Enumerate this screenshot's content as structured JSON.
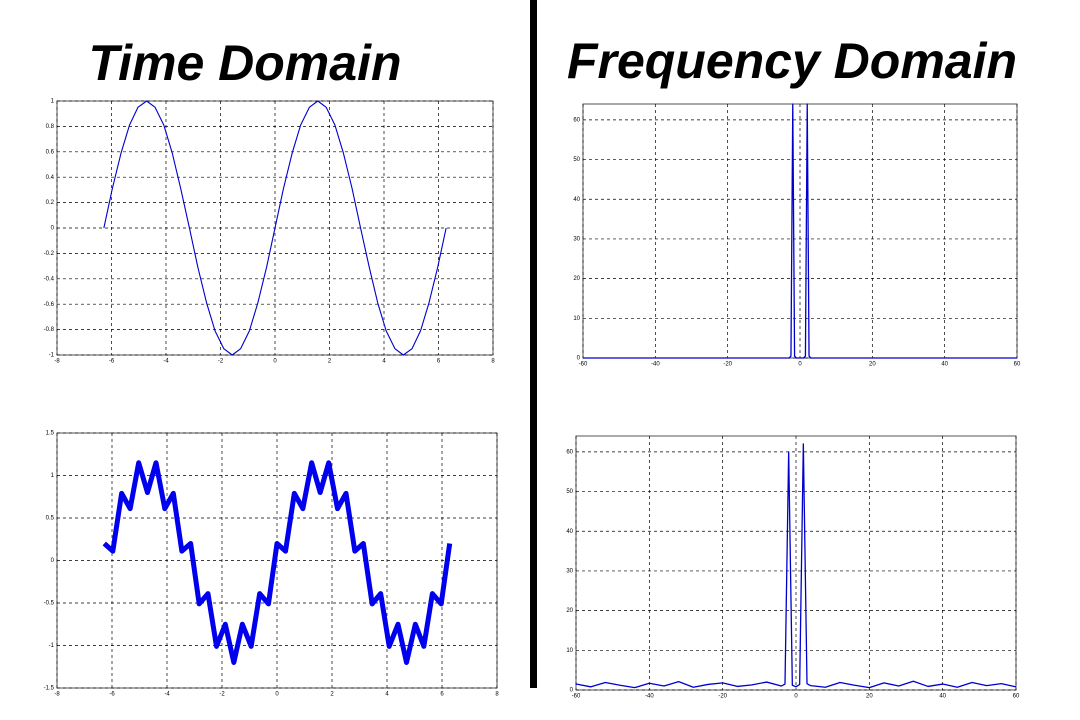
{
  "column_titles": [
    "Time Domain",
    "Frequency Domain"
  ],
  "chart_data": [
    {
      "type": "line",
      "color": "#0000cc",
      "grid": true,
      "xlim": [
        -8,
        8
      ],
      "xticks": [
        -8,
        -6,
        -4,
        -2,
        0,
        2,
        4,
        6,
        8
      ],
      "ylim": [
        -1,
        1
      ],
      "yticks": [
        -1,
        -0.8,
        -0.6,
        -0.4,
        -0.2,
        0,
        0.2,
        0.4,
        0.6,
        0.8,
        1
      ],
      "x": [
        -6.28,
        -5.97,
        -5.65,
        -5.34,
        -5.03,
        -4.71,
        -4.4,
        -4.08,
        -3.77,
        -3.46,
        -3.14,
        -2.83,
        -2.51,
        -2.2,
        -1.88,
        -1.57,
        -1.26,
        -0.94,
        -0.63,
        -0.31,
        0,
        0.31,
        0.63,
        0.94,
        1.26,
        1.57,
        1.88,
        2.2,
        2.51,
        2.83,
        3.14,
        3.46,
        3.77,
        4.08,
        4.4,
        4.71,
        5.03,
        5.34,
        5.65,
        5.97,
        6.28
      ],
      "values": [
        0,
        0.31,
        0.59,
        0.81,
        0.95,
        1,
        0.95,
        0.81,
        0.59,
        0.31,
        0,
        -0.31,
        -0.59,
        -0.81,
        -0.95,
        -1,
        -0.95,
        -0.81,
        -0.59,
        -0.31,
        0,
        0.31,
        0.59,
        0.81,
        0.95,
        1,
        0.95,
        0.81,
        0.59,
        0.31,
        0,
        -0.31,
        -0.59,
        -0.81,
        -0.95,
        -1,
        -0.95,
        -0.81,
        -0.59,
        -0.31,
        0
      ]
    },
    {
      "type": "line",
      "color": "#0000cc",
      "grid": true,
      "xlim": [
        -60,
        60
      ],
      "xticks": [
        -60,
        -40,
        -20,
        0,
        20,
        40,
        60
      ],
      "ylim": [
        0,
        64
      ],
      "yticks": [
        0,
        10,
        20,
        30,
        40,
        50,
        60
      ],
      "x": [
        -60,
        -5,
        -3,
        -2.5,
        -2,
        -1.5,
        -1,
        0,
        1,
        1.5,
        2,
        2.5,
        3,
        5,
        60
      ],
      "values": [
        0,
        0,
        0,
        0.5,
        64,
        0.5,
        0,
        0,
        0,
        0.5,
        64,
        0.5,
        0,
        0,
        0
      ]
    },
    {
      "type": "line",
      "color": "#0000ee",
      "grid": true,
      "xlim": [
        -8,
        8
      ],
      "xticks": [
        -8,
        -6,
        -4,
        -2,
        0,
        2,
        4,
        6,
        8
      ],
      "ylim": [
        -1.5,
        1.5
      ],
      "yticks": [
        -1.5,
        -1,
        -0.5,
        0,
        0.5,
        1,
        1.5
      ],
      "x": [
        -6.28,
        -5.97,
        -5.65,
        -5.34,
        -5.03,
        -4.71,
        -4.4,
        -4.08,
        -3.77,
        -3.46,
        -3.14,
        -2.83,
        -2.51,
        -2.2,
        -1.88,
        -1.57,
        -1.26,
        -0.94,
        -0.63,
        -0.31,
        0,
        0.31,
        0.63,
        0.94,
        1.26,
        1.57,
        1.88,
        2.2,
        2.51,
        2.83,
        3.14,
        3.46,
        3.77,
        4.08,
        4.4,
        4.71,
        5.03,
        5.34,
        5.65,
        5.97,
        6.28
      ],
      "values": [
        0.2,
        0.11,
        0.79,
        0.61,
        1.15,
        0.8,
        1.15,
        0.61,
        0.79,
        0.11,
        0.2,
        -0.51,
        -0.39,
        -1.01,
        -0.75,
        -1.2,
        -0.75,
        -1.01,
        -0.39,
        -0.51,
        0.2,
        0.11,
        0.79,
        0.61,
        1.15,
        0.8,
        1.15,
        0.61,
        0.79,
        0.11,
        0.2,
        -0.51,
        -0.39,
        -1.01,
        -0.75,
        -1.2,
        -0.75,
        -1.01,
        -0.39,
        -0.51,
        0.2
      ]
    },
    {
      "type": "line",
      "color": "#0000cc",
      "grid": true,
      "xlim": [
        -60,
        60
      ],
      "xticks": [
        -60,
        -40,
        -20,
        0,
        20,
        40,
        60
      ],
      "ylim": [
        0,
        64
      ],
      "yticks": [
        0,
        10,
        20,
        30,
        40,
        50,
        60
      ],
      "x": [
        -60,
        -56,
        -52,
        -48,
        -44,
        -40,
        -36,
        -32,
        -28,
        -24,
        -20,
        -16,
        -12,
        -8,
        -4,
        -3,
        -2,
        -1,
        0,
        1,
        2,
        3,
        4,
        8,
        12,
        16,
        20,
        24,
        28,
        32,
        36,
        40,
        44,
        48,
        52,
        56,
        60
      ],
      "values": [
        1.5,
        0.8,
        1.9,
        1.2,
        0.6,
        1.7,
        1,
        2.1,
        0.7,
        1.4,
        1.8,
        0.9,
        1.3,
        2,
        1,
        1.5,
        60,
        1.2,
        0.8,
        1.4,
        62,
        1.6,
        1.1,
        0.7,
        1.9,
        1.2,
        0.6,
        1.8,
        1,
        2.2,
        0.9,
        1.5,
        0.7,
        1.9,
        1.1,
        1.6,
        0.8
      ]
    }
  ]
}
